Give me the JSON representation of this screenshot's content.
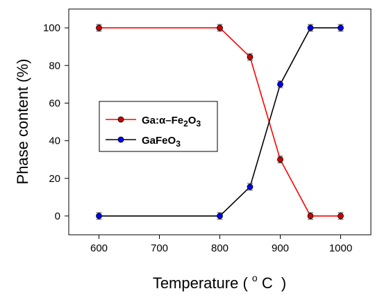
{
  "chart_data": {
    "type": "line",
    "xlabel": "Temperature",
    "xlabel_unit_prefix": "(",
    "xlabel_unit_degree": "o",
    "xlabel_unit_letter": "C",
    "xlabel_unit_suffix": ")",
    "ylabel": "Phase content (%)",
    "xlim": [
      550,
      1050
    ],
    "ylim": [
      -10,
      110
    ],
    "xticks": [
      "600",
      "700",
      "800",
      "900",
      "1000"
    ],
    "yticks": [
      "0",
      "20",
      "40",
      "60",
      "80",
      "100"
    ],
    "x": [
      600,
      800,
      850,
      900,
      950,
      1000
    ],
    "grid": false,
    "legend_position": "center-left",
    "series": [
      {
        "name": "Ga:α–Fe2O3",
        "name_parts": [
          "Ga:α–Fe",
          "2",
          "O",
          "3"
        ],
        "color": "#ff0000",
        "marker_color": "#cc0000",
        "values": [
          100,
          100,
          84.5,
          30,
          0,
          0
        ],
        "error": [
          1.8,
          1.8,
          1.8,
          1.8,
          1.8,
          1.8
        ]
      },
      {
        "name": "GaFeO3",
        "name_parts": [
          "GaFeO",
          "3"
        ],
        "color": "#000000",
        "marker_color": "#0000ee",
        "values": [
          0,
          0,
          15.5,
          70,
          100,
          100
        ],
        "error": [
          1.8,
          1.8,
          1.8,
          1.8,
          1.8,
          1.8
        ]
      }
    ]
  }
}
